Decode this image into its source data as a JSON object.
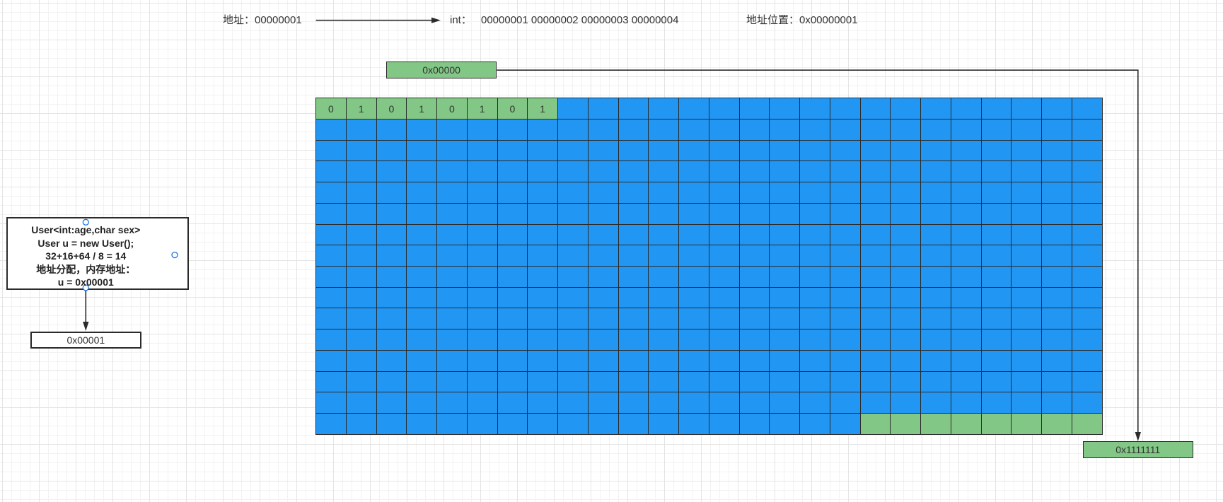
{
  "header": {
    "address_label": "地址：00000001",
    "int_label": "int：",
    "int_values": "00000001 00000002 00000003 00000004",
    "address_position": "地址位置：0x00000001"
  },
  "memory": {
    "start_address": "0x00000",
    "end_address": "0x1111111",
    "first_row_bits": [
      "0",
      "1",
      "0",
      "1",
      "0",
      "1",
      "0",
      "1"
    ]
  },
  "object_box": {
    "lines": [
      "User<int:age,char sex>",
      "User u = new User();",
      "32+16+64 / 8 = 14",
      "地址分配，内存地址：",
      "u = 0x00001"
    ],
    "address": "0x00001"
  },
  "colors": {
    "memory_cell": "#2196f3",
    "highlight": "#82c785",
    "border": "#2b2b2b",
    "handle": "#1a73e8"
  }
}
